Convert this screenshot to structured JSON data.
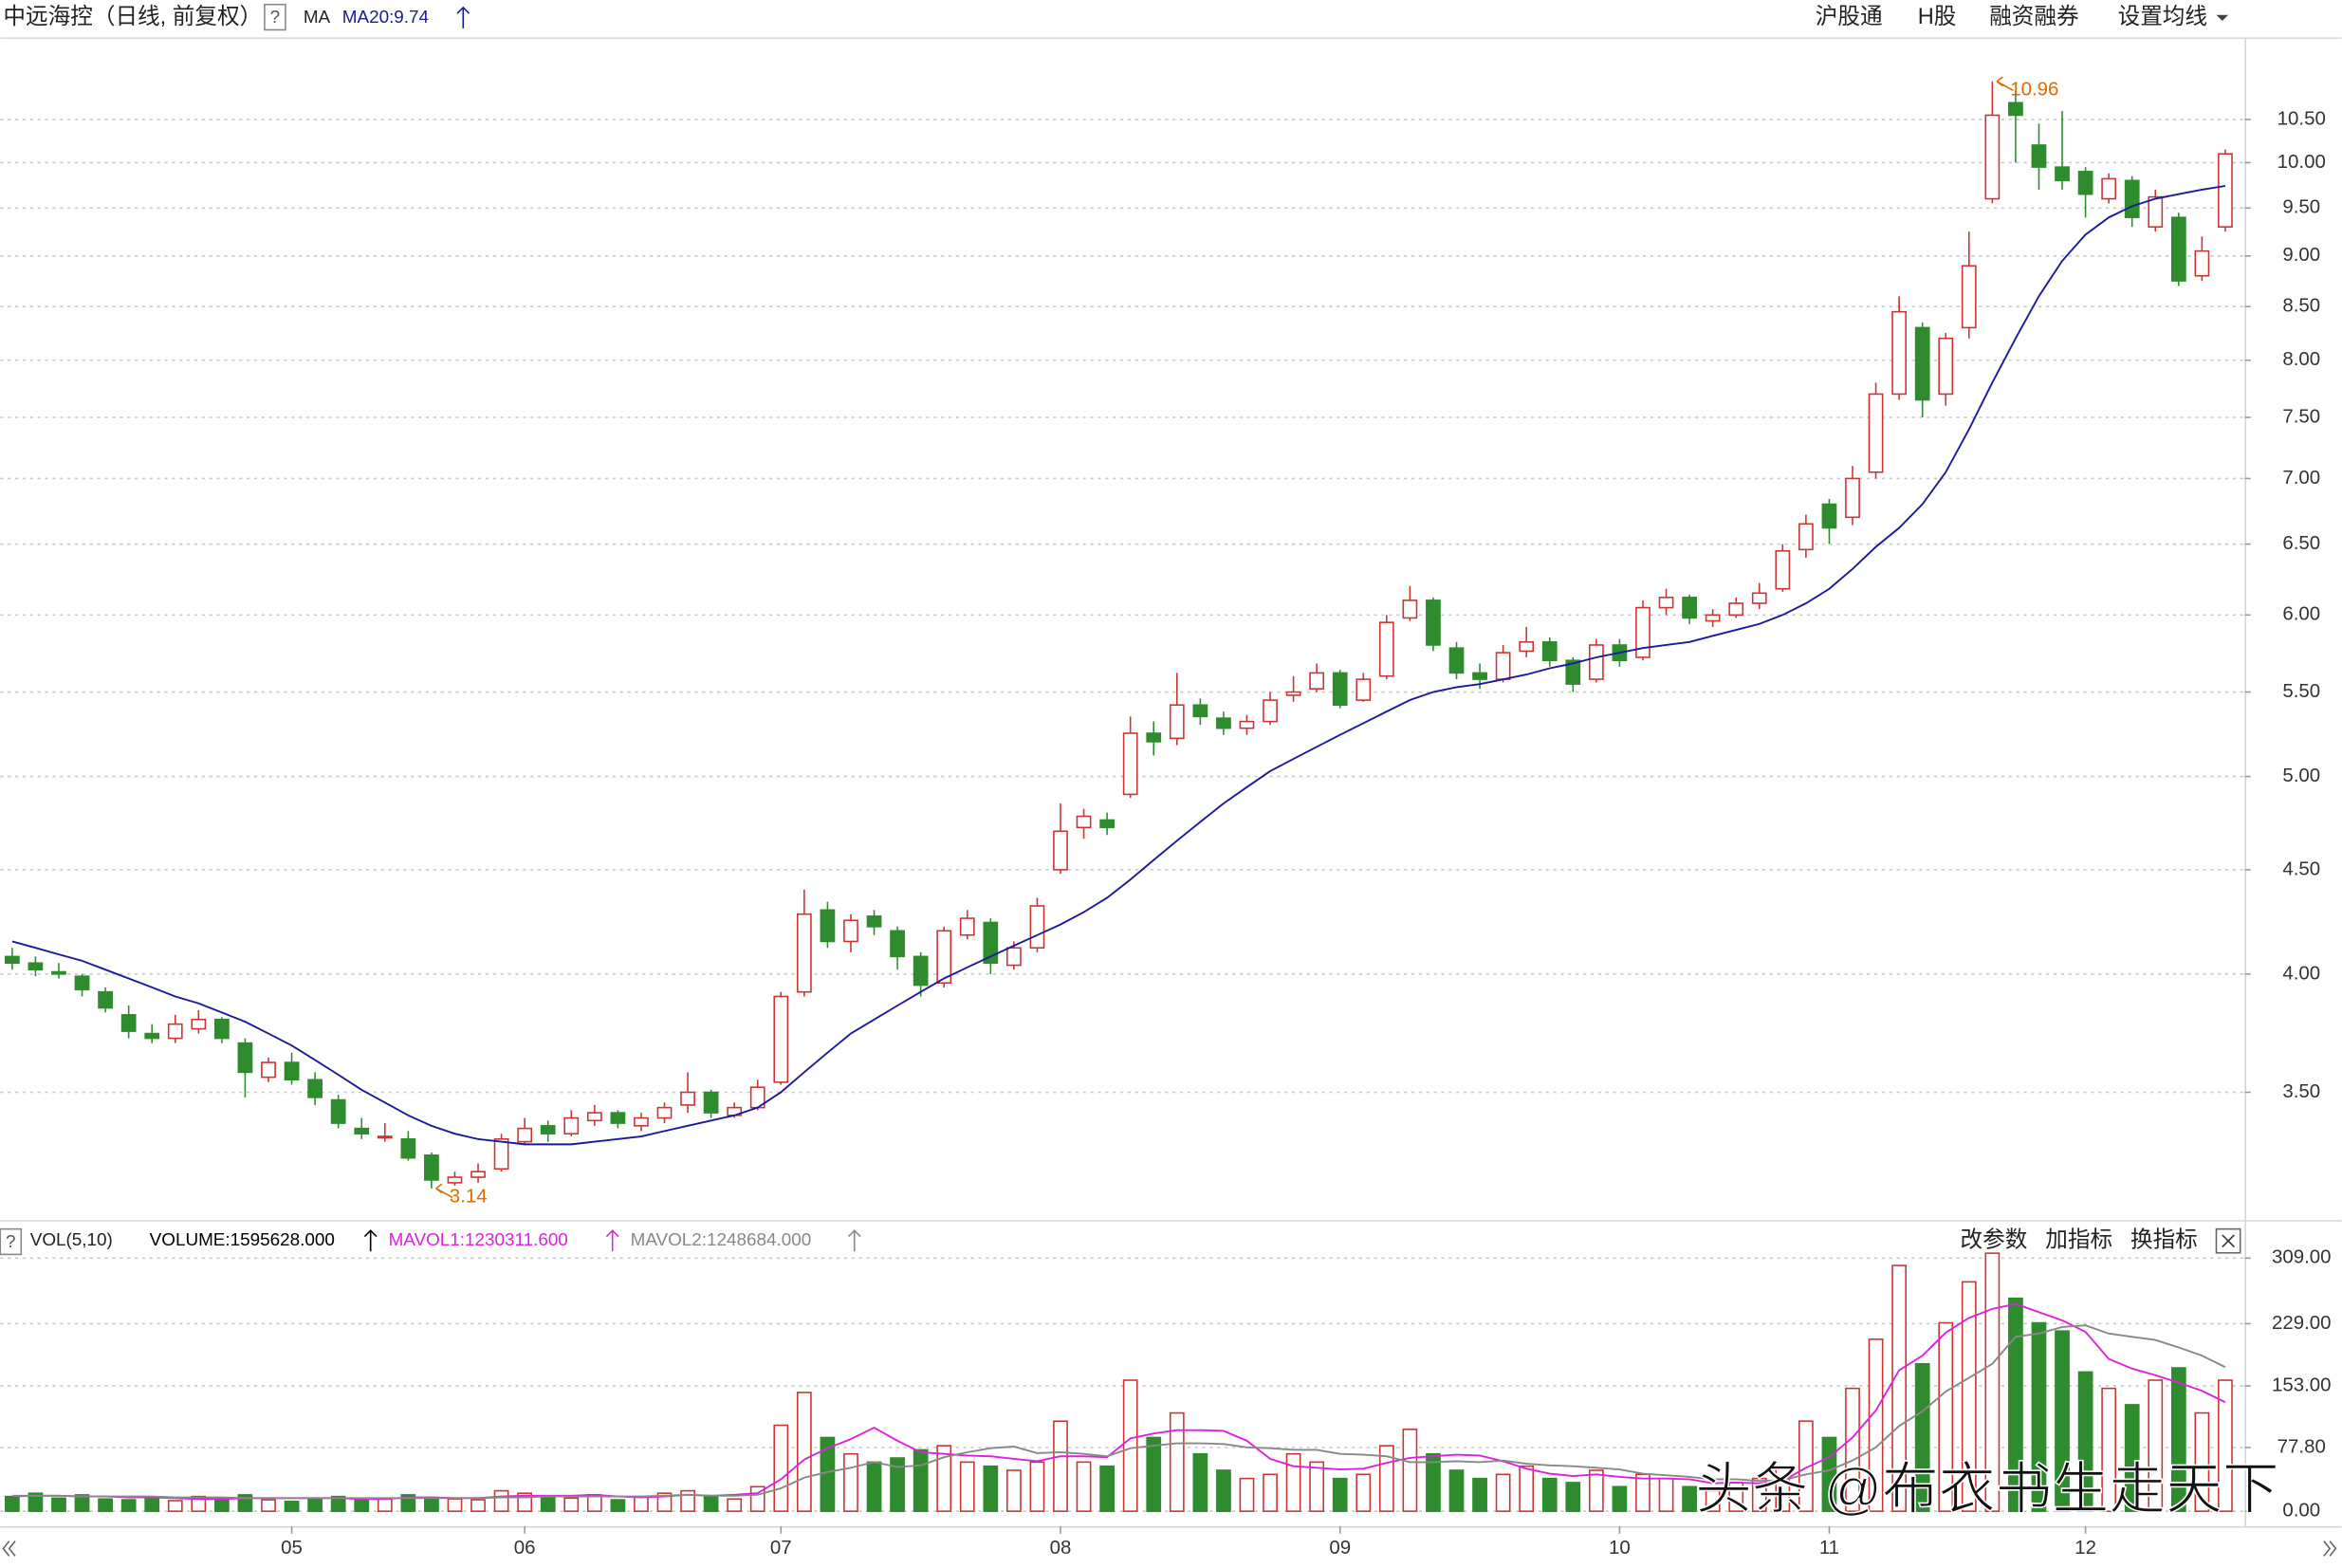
{
  "help_icon": "?",
  "toolbar": [
    "沪股通",
    "H股",
    "融资融券",
    "设置均线"
  ],
  "indicator_toolbar": [
    "改参数",
    "加指标",
    "换指标"
  ],
  "watermark": "头条 @布衣书生走天下",
  "chart_data": [
    {
      "type": "candlestick",
      "title": "中远海控（日线, 前复权）",
      "indicator": "MA",
      "log_scale": true,
      "grid": true,
      "up_color": "#cc3333",
      "down_color": "#2e8b2e",
      "ylim": [
        3.04,
        11.52
      ],
      "yticks": [
        {
          "value": 3.5,
          "label": "3.50"
        },
        {
          "value": 4,
          "label": "4.00"
        },
        {
          "value": 4.5,
          "label": "4.50"
        },
        {
          "value": 5,
          "label": "5.00"
        },
        {
          "value": 5.5,
          "label": "5.50"
        },
        {
          "value": 6,
          "label": "6.00"
        },
        {
          "value": 6.5,
          "label": "6.50"
        },
        {
          "value": 7,
          "label": "7.00"
        },
        {
          "value": 7.5,
          "label": "7.50"
        },
        {
          "value": 8,
          "label": "8.00"
        },
        {
          "value": 8.5,
          "label": "8.50"
        },
        {
          "value": 9,
          "label": "9.00"
        },
        {
          "value": 9.5,
          "label": "9.50"
        },
        {
          "value": 10,
          "label": "10.00"
        },
        {
          "value": 10.5,
          "label": "10.50"
        }
      ],
      "categories": [
        null,
        null,
        null,
        null,
        null,
        null,
        null,
        null,
        null,
        null,
        null,
        null,
        "05",
        null,
        null,
        null,
        null,
        null,
        null,
        null,
        null,
        null,
        "06",
        null,
        null,
        null,
        null,
        null,
        null,
        null,
        null,
        null,
        null,
        "07",
        null,
        null,
        null,
        null,
        null,
        null,
        null,
        null,
        null,
        null,
        null,
        "08",
        null,
        null,
        null,
        null,
        null,
        null,
        null,
        null,
        null,
        null,
        null,
        "09",
        null,
        null,
        null,
        null,
        null,
        null,
        null,
        null,
        null,
        null,
        null,
        "10",
        null,
        null,
        null,
        null,
        null,
        null,
        null,
        null,
        "11",
        null,
        null,
        null,
        null,
        null,
        null,
        null,
        null,
        null,
        null,
        "12",
        null,
        null,
        null,
        null,
        null,
        null
      ],
      "ohlc": [
        [
          4.08,
          4.12,
          4.02,
          4.05
        ],
        [
          4.05,
          4.08,
          3.99,
          4.02
        ],
        [
          4.01,
          4.05,
          3.98,
          4.0
        ],
        [
          3.99,
          4.0,
          3.9,
          3.93
        ],
        [
          3.92,
          3.94,
          3.83,
          3.85
        ],
        [
          3.82,
          3.86,
          3.72,
          3.75
        ],
        [
          3.74,
          3.78,
          3.7,
          3.72
        ],
        [
          3.72,
          3.82,
          3.7,
          3.78
        ],
        [
          3.76,
          3.84,
          3.74,
          3.8
        ],
        [
          3.8,
          3.81,
          3.7,
          3.72
        ],
        [
          3.7,
          3.72,
          3.48,
          3.58
        ],
        [
          3.56,
          3.64,
          3.54,
          3.62
        ],
        [
          3.62,
          3.66,
          3.53,
          3.55
        ],
        [
          3.55,
          3.58,
          3.45,
          3.48
        ],
        [
          3.47,
          3.49,
          3.36,
          3.38
        ],
        [
          3.36,
          3.4,
          3.32,
          3.34
        ],
        [
          3.33,
          3.38,
          3.31,
          3.33
        ],
        [
          3.32,
          3.35,
          3.24,
          3.25
        ],
        [
          3.26,
          3.27,
          3.14,
          3.17
        ],
        [
          3.16,
          3.2,
          3.15,
          3.18
        ],
        [
          3.18,
          3.23,
          3.16,
          3.2
        ],
        [
          3.21,
          3.34,
          3.2,
          3.32
        ],
        [
          3.31,
          3.4,
          3.3,
          3.36
        ],
        [
          3.37,
          3.39,
          3.31,
          3.34
        ],
        [
          3.34,
          3.43,
          3.33,
          3.4
        ],
        [
          3.39,
          3.45,
          3.37,
          3.42
        ],
        [
          3.42,
          3.43,
          3.36,
          3.38
        ],
        [
          3.37,
          3.42,
          3.35,
          3.4
        ],
        [
          3.4,
          3.46,
          3.38,
          3.44
        ],
        [
          3.45,
          3.58,
          3.42,
          3.5
        ],
        [
          3.5,
          3.51,
          3.4,
          3.42
        ],
        [
          3.41,
          3.46,
          3.4,
          3.44
        ],
        [
          3.44,
          3.55,
          3.43,
          3.52
        ],
        [
          3.54,
          3.92,
          3.53,
          3.9
        ],
        [
          3.92,
          4.4,
          3.9,
          4.28
        ],
        [
          4.3,
          4.34,
          4.12,
          4.15
        ],
        [
          4.15,
          4.28,
          4.1,
          4.25
        ],
        [
          4.27,
          4.3,
          4.18,
          4.22
        ],
        [
          4.2,
          4.22,
          4.02,
          4.08
        ],
        [
          4.08,
          4.1,
          3.9,
          3.95
        ],
        [
          3.96,
          4.22,
          3.94,
          4.2
        ],
        [
          4.18,
          4.3,
          4.16,
          4.26
        ],
        [
          4.24,
          4.26,
          4.0,
          4.05
        ],
        [
          4.04,
          4.15,
          4.02,
          4.12
        ],
        [
          4.12,
          4.36,
          4.1,
          4.32
        ],
        [
          4.5,
          4.85,
          4.48,
          4.7
        ],
        [
          4.72,
          4.82,
          4.66,
          4.78
        ],
        [
          4.76,
          4.8,
          4.68,
          4.72
        ],
        [
          4.9,
          5.35,
          4.88,
          5.25
        ],
        [
          5.25,
          5.32,
          5.12,
          5.2
        ],
        [
          5.22,
          5.62,
          5.18,
          5.42
        ],
        [
          5.42,
          5.46,
          5.3,
          5.35
        ],
        [
          5.34,
          5.38,
          5.24,
          5.28
        ],
        [
          5.28,
          5.36,
          5.24,
          5.32
        ],
        [
          5.32,
          5.5,
          5.3,
          5.45
        ],
        [
          5.48,
          5.6,
          5.44,
          5.5
        ],
        [
          5.52,
          5.68,
          5.5,
          5.62
        ],
        [
          5.62,
          5.64,
          5.4,
          5.42
        ],
        [
          5.45,
          5.62,
          5.44,
          5.58
        ],
        [
          5.6,
          6.0,
          5.58,
          5.95
        ],
        [
          5.98,
          6.2,
          5.96,
          6.1
        ],
        [
          6.1,
          6.12,
          5.76,
          5.8
        ],
        [
          5.78,
          5.82,
          5.58,
          5.62
        ],
        [
          5.62,
          5.68,
          5.52,
          5.58
        ],
        [
          5.58,
          5.8,
          5.56,
          5.75
        ],
        [
          5.76,
          5.92,
          5.72,
          5.82
        ],
        [
          5.82,
          5.85,
          5.66,
          5.7
        ],
        [
          5.7,
          5.72,
          5.5,
          5.55
        ],
        [
          5.58,
          5.84,
          5.56,
          5.8
        ],
        [
          5.8,
          5.84,
          5.66,
          5.7
        ],
        [
          5.72,
          6.1,
          5.7,
          6.05
        ],
        [
          6.05,
          6.18,
          6.0,
          6.12
        ],
        [
          6.12,
          6.14,
          5.94,
          5.98
        ],
        [
          5.96,
          6.04,
          5.92,
          6.0
        ],
        [
          6.0,
          6.12,
          5.98,
          6.08
        ],
        [
          6.08,
          6.22,
          6.04,
          6.15
        ],
        [
          6.18,
          6.5,
          6.16,
          6.45
        ],
        [
          6.46,
          6.72,
          6.4,
          6.65
        ],
        [
          6.8,
          6.84,
          6.5,
          6.62
        ],
        [
          6.7,
          7.1,
          6.64,
          7.0
        ],
        [
          7.05,
          7.8,
          7.0,
          7.7
        ],
        [
          7.7,
          8.6,
          7.65,
          8.45
        ],
        [
          8.3,
          8.35,
          7.5,
          7.65
        ],
        [
          7.7,
          8.25,
          7.6,
          8.2
        ],
        [
          8.3,
          9.25,
          8.2,
          8.9
        ],
        [
          9.6,
          10.96,
          9.55,
          10.55
        ],
        [
          10.7,
          10.85,
          10.0,
          10.55
        ],
        [
          10.2,
          10.45,
          9.7,
          9.95
        ],
        [
          9.95,
          10.6,
          9.7,
          9.8
        ],
        [
          9.9,
          9.95,
          9.4,
          9.65
        ],
        [
          9.6,
          9.88,
          9.55,
          9.82
        ],
        [
          9.8,
          9.85,
          9.3,
          9.4
        ],
        [
          9.3,
          9.7,
          9.25,
          9.62
        ],
        [
          9.4,
          9.45,
          8.7,
          8.75
        ],
        [
          8.8,
          9.2,
          8.75,
          9.05
        ],
        [
          9.3,
          10.15,
          9.25,
          10.1
        ]
      ],
      "annotations": [
        10.96,
        3.14
      ],
      "annotation_color": "#e06a00",
      "series": [
        {
          "name": "MA20:9.74",
          "color": "#1a1a99",
          "values": [
            4.15,
            4.12,
            4.09,
            4.06,
            4.02,
            3.98,
            3.94,
            3.9,
            3.87,
            3.83,
            3.79,
            3.74,
            3.69,
            3.63,
            3.57,
            3.51,
            3.46,
            3.41,
            3.37,
            3.34,
            3.32,
            3.31,
            3.3,
            3.3,
            3.3,
            3.31,
            3.32,
            3.33,
            3.35,
            3.37,
            3.39,
            3.41,
            3.44,
            3.5,
            3.58,
            3.66,
            3.74,
            3.8,
            3.86,
            3.92,
            3.98,
            4.03,
            4.08,
            4.13,
            4.18,
            4.23,
            4.29,
            4.36,
            4.45,
            4.55,
            4.65,
            4.75,
            4.85,
            4.94,
            5.03,
            5.1,
            5.17,
            5.24,
            5.31,
            5.38,
            5.45,
            5.5,
            5.53,
            5.55,
            5.58,
            5.61,
            5.65,
            5.68,
            5.72,
            5.75,
            5.78,
            5.8,
            5.82,
            5.86,
            5.9,
            5.94,
            6.0,
            6.08,
            6.18,
            6.32,
            6.48,
            6.62,
            6.8,
            7.05,
            7.4,
            7.8,
            8.2,
            8.6,
            8.95,
            9.22,
            9.4,
            9.52,
            9.6,
            9.65,
            9.7,
            9.74
          ]
        }
      ]
    },
    {
      "type": "bar",
      "title": "VOL(5,10)",
      "grid": true,
      "ylim": [
        0,
        350
      ],
      "yticks": [
        {
          "value": 0,
          "label": "0.00"
        },
        {
          "value": 77.8,
          "label": "77.80"
        },
        {
          "value": 153,
          "label": "153.00"
        },
        {
          "value": 229,
          "label": "229.00"
        },
        {
          "value": 309,
          "label": "309.00"
        }
      ],
      "series": [
        {
          "name": "VOLUME:1595628.000",
          "color": "#000000",
          "values": [
            18,
            22,
            16,
            20,
            15,
            14,
            16,
            13,
            18,
            15,
            20,
            14,
            12,
            16,
            18,
            14,
            15,
            20,
            17,
            15,
            14,
            25,
            22,
            18,
            16,
            20,
            14,
            18,
            22,
            25,
            18,
            15,
            30,
            105,
            145,
            90,
            70,
            60,
            65,
            75,
            80,
            60,
            55,
            50,
            60,
            110,
            60,
            55,
            160,
            90,
            120,
            70,
            50,
            40,
            45,
            70,
            60,
            40,
            45,
            80,
            100,
            70,
            50,
            40,
            45,
            55,
            40,
            35,
            50,
            30,
            45,
            40,
            30,
            25,
            35,
            40,
            55,
            110,
            90,
            150,
            210,
            300,
            180,
            230,
            280,
            315,
            260,
            230,
            220,
            170,
            150,
            130,
            160,
            175,
            120,
            160
          ]
        },
        {
          "name": "MAVOL1:1230311.600",
          "type": "line",
          "color": "#dd22dd",
          "values": [
            18,
            19,
            19,
            18,
            18,
            17,
            17,
            16,
            15,
            15,
            16,
            16,
            16,
            16,
            16,
            15,
            15,
            17,
            17,
            16,
            16,
            18,
            19,
            19,
            19,
            20,
            18,
            17,
            18,
            20,
            19,
            20,
            22,
            39,
            63,
            77,
            88,
            102,
            86,
            72,
            70,
            68,
            67,
            64,
            61,
            67,
            67,
            66,
            89,
            95,
            99,
            99,
            98,
            86,
            64,
            55,
            53,
            51,
            52,
            59,
            65,
            67,
            69,
            68,
            61,
            52,
            46,
            43,
            45,
            42,
            40,
            40,
            39,
            34,
            35,
            34,
            37,
            53,
            66,
            90,
            123,
            172,
            190,
            218,
            236,
            247,
            253,
            243,
            233,
            219,
            186,
            174,
            166,
            157,
            147,
            133
          ]
        },
        {
          "name": "MAVOL2:1248684.000",
          "type": "line",
          "color": "#888888",
          "values": [
            19,
            19,
            19,
            18,
            18,
            18,
            18,
            17,
            17,
            17,
            16,
            16,
            16,
            16,
            16,
            16,
            16,
            16,
            16,
            16,
            16,
            17,
            17,
            18,
            18,
            18,
            18,
            18,
            19,
            20,
            19,
            19,
            20,
            28,
            41,
            48,
            53,
            60,
            54,
            56,
            66,
            72,
            77,
            79,
            71,
            72,
            70,
            67,
            77,
            80,
            83,
            83,
            82,
            78,
            77,
            75,
            75,
            70,
            69,
            67,
            60,
            60,
            61,
            60,
            62,
            58,
            56,
            55,
            53,
            51,
            46,
            44,
            42,
            39,
            39,
            37,
            38,
            45,
            50,
            62,
            78,
            104,
            122,
            146,
            163,
            180,
            213,
            217,
            225,
            227,
            217,
            213,
            209,
            200,
            190,
            176
          ]
        }
      ]
    }
  ]
}
